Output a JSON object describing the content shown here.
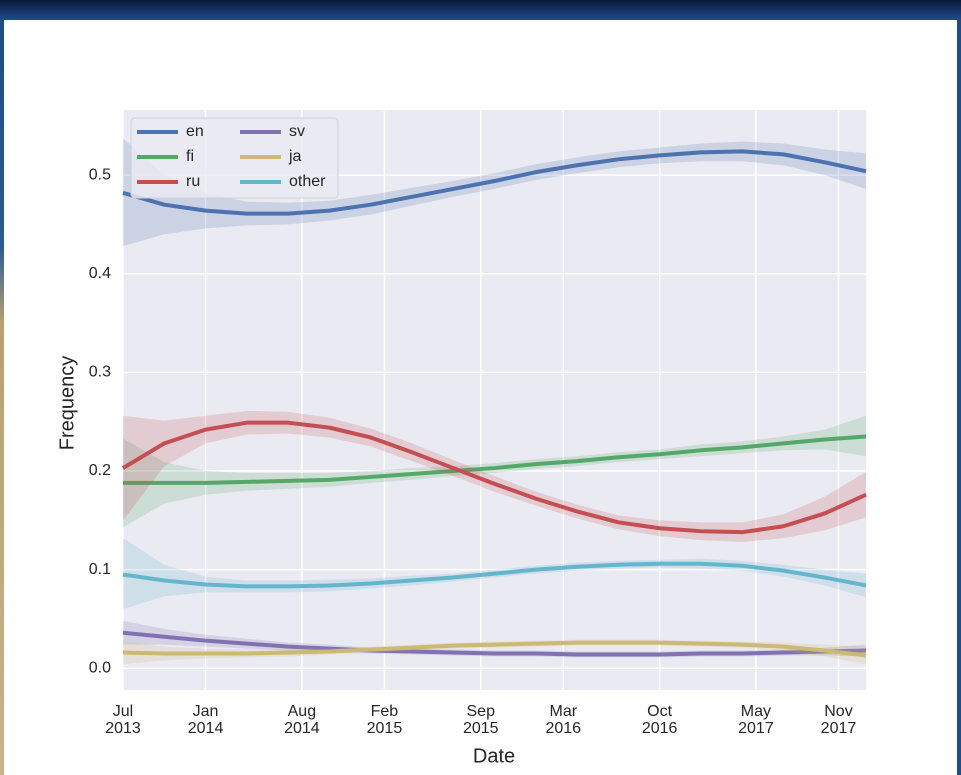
{
  "chart_data": {
    "type": "line",
    "xlabel": "Date",
    "ylabel": "Frequency",
    "x": [
      "2013-07",
      "2013-10",
      "2014-01",
      "2014-04",
      "2014-07",
      "2014-10",
      "2015-01",
      "2015-04",
      "2015-07",
      "2015-10",
      "2016-01",
      "2016-04",
      "2016-07",
      "2016-10",
      "2017-01",
      "2017-04",
      "2017-07",
      "2017-10",
      "2018-01"
    ],
    "xlim": [
      "2013-07",
      "2018-01"
    ],
    "xticks": [
      {
        "value": "2013-07",
        "label": "Jul 2013"
      },
      {
        "value": "2014-01",
        "label": "Jan 2014"
      },
      {
        "value": "2014-08",
        "label": "Aug 2014"
      },
      {
        "value": "2015-02",
        "label": "Feb 2015"
      },
      {
        "value": "2015-09",
        "label": "Sep 2015"
      },
      {
        "value": "2016-03",
        "label": "Mar 2016"
      },
      {
        "value": "2016-10",
        "label": "Oct 2016"
      },
      {
        "value": "2017-05",
        "label": "May 2017"
      },
      {
        "value": "2017-11",
        "label": "Nov 2017"
      }
    ],
    "ylim": [
      -0.022,
      0.566
    ],
    "yticks": [
      {
        "value": 0,
        "label": "0.0"
      },
      0.1,
      0.2,
      0.3,
      0.4,
      0.5
    ],
    "grid": true,
    "legend": "upper left",
    "series": [
      {
        "name": "en",
        "color": "#4c72b0",
        "values": [
          0.482,
          0.47,
          0.464,
          0.461,
          0.461,
          0.464,
          0.47,
          0.478,
          0.486,
          0.494,
          0.503,
          0.51,
          0.516,
          0.52,
          0.523,
          0.524,
          0.521,
          0.513,
          0.504
        ],
        "lower": [
          0.428,
          0.44,
          0.446,
          0.449,
          0.45,
          0.454,
          0.46,
          0.469,
          0.478,
          0.486,
          0.495,
          0.502,
          0.508,
          0.512,
          0.514,
          0.514,
          0.51,
          0.5,
          0.486
        ],
        "upper": [
          0.537,
          0.5,
          0.482,
          0.473,
          0.472,
          0.474,
          0.48,
          0.487,
          0.494,
          0.502,
          0.511,
          0.518,
          0.524,
          0.528,
          0.532,
          0.534,
          0.532,
          0.526,
          0.522
        ]
      },
      {
        "name": "fi",
        "color": "#55a868",
        "values": [
          0.188,
          0.188,
          0.188,
          0.189,
          0.19,
          0.191,
          0.194,
          0.197,
          0.2,
          0.203,
          0.207,
          0.21,
          0.214,
          0.217,
          0.221,
          0.224,
          0.228,
          0.232,
          0.235
        ],
        "lower": [
          0.143,
          0.167,
          0.176,
          0.18,
          0.182,
          0.184,
          0.188,
          0.191,
          0.195,
          0.198,
          0.202,
          0.205,
          0.209,
          0.212,
          0.215,
          0.218,
          0.221,
          0.222,
          0.215
        ],
        "upper": [
          0.233,
          0.209,
          0.2,
          0.198,
          0.198,
          0.198,
          0.2,
          0.203,
          0.205,
          0.208,
          0.212,
          0.215,
          0.219,
          0.222,
          0.227,
          0.23,
          0.235,
          0.242,
          0.256
        ]
      },
      {
        "name": "ru",
        "color": "#c44e52",
        "values": [
          0.203,
          0.228,
          0.242,
          0.249,
          0.249,
          0.244,
          0.234,
          0.219,
          0.203,
          0.187,
          0.172,
          0.159,
          0.148,
          0.142,
          0.139,
          0.138,
          0.144,
          0.157,
          0.176
        ],
        "lower": [
          0.15,
          0.205,
          0.228,
          0.237,
          0.238,
          0.234,
          0.225,
          0.21,
          0.195,
          0.179,
          0.165,
          0.152,
          0.141,
          0.134,
          0.13,
          0.128,
          0.132,
          0.14,
          0.153
        ],
        "upper": [
          0.256,
          0.251,
          0.256,
          0.261,
          0.26,
          0.254,
          0.243,
          0.228,
          0.211,
          0.195,
          0.179,
          0.166,
          0.155,
          0.15,
          0.148,
          0.148,
          0.156,
          0.174,
          0.199
        ]
      },
      {
        "name": "sv",
        "color": "#8172b2",
        "values": [
          0.036,
          0.032,
          0.028,
          0.025,
          0.022,
          0.02,
          0.018,
          0.017,
          0.016,
          0.015,
          0.015,
          0.014,
          0.014,
          0.014,
          0.015,
          0.015,
          0.016,
          0.017,
          0.018
        ],
        "lower": [
          0.024,
          0.024,
          0.022,
          0.02,
          0.018,
          0.016,
          0.015,
          0.014,
          0.013,
          0.012,
          0.012,
          0.011,
          0.011,
          0.011,
          0.012,
          0.012,
          0.013,
          0.013,
          0.012
        ],
        "upper": [
          0.048,
          0.04,
          0.034,
          0.03,
          0.026,
          0.024,
          0.021,
          0.02,
          0.019,
          0.018,
          0.018,
          0.017,
          0.017,
          0.017,
          0.018,
          0.018,
          0.019,
          0.021,
          0.024
        ]
      },
      {
        "name": "ja",
        "color": "#ccb974",
        "values": [
          0.016,
          0.015,
          0.015,
          0.015,
          0.016,
          0.017,
          0.019,
          0.021,
          0.023,
          0.024,
          0.025,
          0.026,
          0.026,
          0.026,
          0.025,
          0.024,
          0.022,
          0.018,
          0.013
        ],
        "lower": [
          0.004,
          0.008,
          0.01,
          0.011,
          0.012,
          0.014,
          0.016,
          0.018,
          0.02,
          0.021,
          0.022,
          0.023,
          0.023,
          0.023,
          0.022,
          0.021,
          0.018,
          0.012,
          0.004
        ],
        "upper": [
          0.028,
          0.022,
          0.02,
          0.019,
          0.02,
          0.02,
          0.022,
          0.024,
          0.026,
          0.027,
          0.028,
          0.029,
          0.029,
          0.029,
          0.028,
          0.027,
          0.026,
          0.024,
          0.022
        ]
      },
      {
        "name": "other",
        "color": "#64b5cd",
        "values": [
          0.095,
          0.089,
          0.085,
          0.083,
          0.083,
          0.084,
          0.086,
          0.089,
          0.092,
          0.096,
          0.1,
          0.103,
          0.105,
          0.106,
          0.106,
          0.104,
          0.099,
          0.092,
          0.084
        ],
        "lower": [
          0.06,
          0.073,
          0.077,
          0.077,
          0.077,
          0.078,
          0.081,
          0.084,
          0.088,
          0.092,
          0.096,
          0.099,
          0.101,
          0.102,
          0.101,
          0.099,
          0.093,
          0.084,
          0.072
        ],
        "upper": [
          0.132,
          0.105,
          0.093,
          0.089,
          0.089,
          0.09,
          0.091,
          0.094,
          0.096,
          0.1,
          0.104,
          0.107,
          0.109,
          0.11,
          0.111,
          0.109,
          0.105,
          0.1,
          0.096
        ]
      }
    ]
  }
}
